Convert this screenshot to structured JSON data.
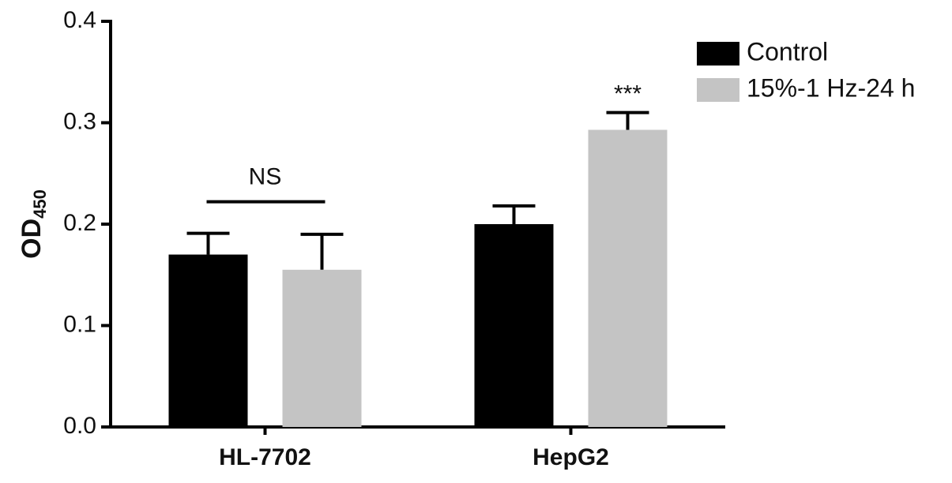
{
  "chart_data": {
    "type": "bar",
    "categories": [
      "HL-7702",
      "HepG2"
    ],
    "series": [
      {
        "name": "Control",
        "color": "#000000",
        "values": [
          0.17,
          0.2
        ],
        "errors": [
          0.021,
          0.018
        ]
      },
      {
        "name": "15%-1 Hz-24 h",
        "color": "#c4c4c4",
        "values": [
          0.155,
          0.293
        ],
        "errors": [
          0.035,
          0.017
        ]
      }
    ],
    "ylabel": "OD",
    "ylabel_sub": "450",
    "ylim": [
      0,
      0.4
    ],
    "yticks": [
      {
        "value": 0,
        "label": "0.0"
      },
      0.1,
      0.2,
      0.3,
      0.4
    ],
    "annotations": [
      "NS",
      "***"
    ],
    "legend": "top-right"
  }
}
